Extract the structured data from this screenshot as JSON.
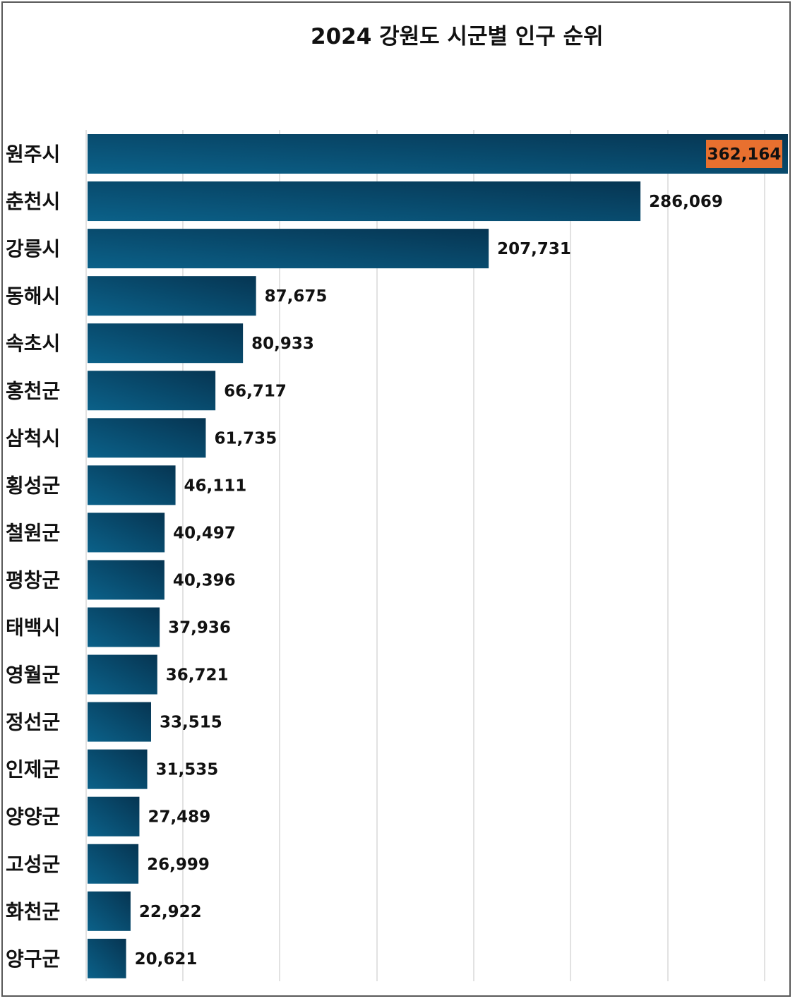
{
  "chart_data": {
    "type": "bar",
    "orientation": "horizontal",
    "title": "2024 강원도 시군별 인구 순위",
    "categories": [
      "원주시",
      "춘천시",
      "강릉시",
      "동해시",
      "속초시",
      "홍천군",
      "삼척시",
      "횡성군",
      "철원군",
      "평창군",
      "태백시",
      "영월군",
      "정선군",
      "인제군",
      "양양군",
      "고성군",
      "화천군",
      "양구군"
    ],
    "values": [
      362164,
      286069,
      207731,
      87675,
      80933,
      66717,
      61735,
      46111,
      40497,
      40396,
      37936,
      36721,
      33515,
      31535,
      27489,
      26999,
      22922,
      20621
    ],
    "value_labels": [
      "362,164",
      "286,069",
      "207,731",
      "87,675",
      "80,933",
      "66,717",
      "61,735",
      "46,111",
      "40,497",
      "40,396",
      "37,936",
      "36,721",
      "33,515",
      "31,535",
      "27,489",
      "26,999",
      "22,922",
      "20,621"
    ],
    "xlim": [
      0,
      362164
    ],
    "grid": true,
    "highlight_index": 0,
    "colors": {
      "bar_dark": "#083B57",
      "bar_light": "#0B6189",
      "highlight": "#E8702F",
      "grid": "#D9D9D9"
    }
  }
}
